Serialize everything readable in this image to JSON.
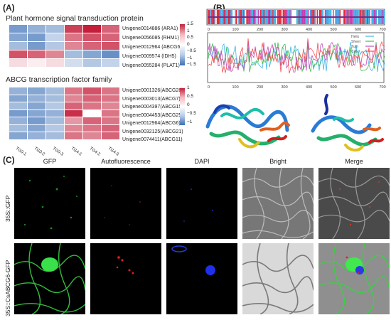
{
  "panel_a": {
    "label": "(A)",
    "heatmap_top": {
      "title": "Plant hormone signal transduction protein",
      "genes": [
        "Unigene0014886 (ARA1)",
        "Unigene0056085 (RHM1)",
        "Unigene0012964 (ABCG6)",
        "Unigene0009574 (IDH5)",
        "Unigene0055284 (PLAT1)"
      ],
      "colorbar_ticks": [
        "1.5",
        "1",
        "0.5",
        "0",
        "−0.5",
        "−1",
        "−1.5"
      ],
      "values": [
        [
          -0.9,
          -0.7,
          -0.6,
          1.1,
          1.3,
          0.9
        ],
        [
          -0.8,
          -0.9,
          -0.4,
          0.8,
          1.0,
          0.9
        ],
        [
          -0.6,
          -0.9,
          -0.5,
          0.7,
          0.9,
          1.0
        ],
        [
          1.0,
          0.9,
          0.7,
          -0.6,
          -0.8,
          -1.0
        ],
        [
          0.2,
          0.1,
          0.2,
          -0.3,
          -0.5,
          -0.4
        ]
      ]
    },
    "heatmap_bottom": {
      "title": "ABCG transcription factor family",
      "genes": [
        "Unigene0001326(ABCG28)",
        "Unigene0003013(ABCG7)",
        "Unigene0004397(ABCG15)",
        "Unigene0004453(ABCG25)",
        "Unigene0012964(ABCG6)",
        "Unigene0032125(ABCG21)",
        "Unigene0074411(ABCG11)"
      ],
      "colorbar_ticks": [
        "1",
        "0.5",
        "0",
        "−0.5",
        "−1"
      ],
      "values": [
        [
          -0.7,
          -0.8,
          -0.6,
          0.8,
          1.0,
          0.8
        ],
        [
          -0.8,
          -0.7,
          -0.6,
          0.7,
          0.9,
          0.8
        ],
        [
          -0.6,
          -0.8,
          -0.5,
          0.9,
          0.8,
          0.7
        ],
        [
          -0.9,
          -0.8,
          -0.7,
          1.2,
          null,
          0.8
        ],
        [
          -0.7,
          -0.9,
          -0.6,
          0.6,
          0.9,
          0.8
        ],
        [
          -0.6,
          -0.8,
          -0.5,
          0.7,
          0.8,
          0.9
        ],
        [
          -0.8,
          -0.7,
          -0.6,
          0.8,
          0.7,
          0.9
        ]
      ],
      "samples": [
        "TG0-1",
        "TG0-2",
        "TG0-3",
        "TG4-1",
        "TG4-2",
        "TG4-3"
      ]
    },
    "colors": {
      "high": "#c41e3a",
      "mid": "#ffffff",
      "low": "#3b6fb6"
    }
  },
  "panel_b": {
    "label": "(B)",
    "track_ticks": [
      "0",
      "100",
      "200",
      "300",
      "400",
      "500",
      "600",
      "700"
    ],
    "line_ticks": [
      "0",
      "100",
      "200",
      "300",
      "400",
      "500",
      "600",
      "700"
    ],
    "legend": [
      "Helix",
      "Sheet",
      "Turn",
      "Coil"
    ],
    "legend_colors": [
      "#41b6e6",
      "#3fbf4f",
      "#c050c0",
      "#f05050"
    ]
  },
  "panel_c": {
    "label": "(C)",
    "channels": [
      "GFP",
      "Autofluorescence",
      "DAPI",
      "Bright",
      "Merge"
    ],
    "rows": [
      "35S::GFP",
      "35S::CsABCG6-GFP"
    ]
  }
}
